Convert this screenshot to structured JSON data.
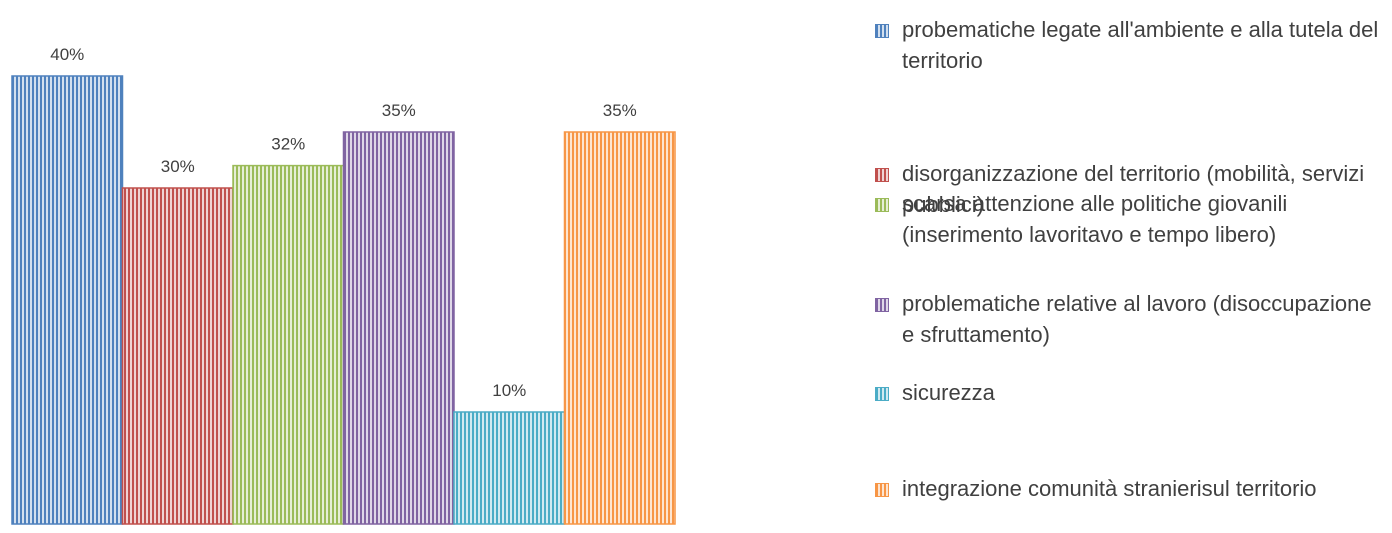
{
  "chart_data": {
    "type": "bar",
    "ylim": [
      0,
      45
    ],
    "grid": false,
    "legend_position": "right",
    "value_suffix": "%",
    "series": [
      {
        "name": "probematiche legate all'ambiente e alla tutela del territorio",
        "value": 40,
        "label": "40%",
        "color": "#4f81bd",
        "icon": "striped-swatch-icon"
      },
      {
        "name": "disorganizzazione del territorio (mobilità, servizi pubblici)",
        "value": 30,
        "label": "30%",
        "color": "#c0504d",
        "icon": "striped-swatch-icon"
      },
      {
        "name": "scarsa attenzione alle politiche giovanili (inserimento lavoritavo e tempo libero)",
        "value": 32,
        "label": "32%",
        "color": "#9bbb59",
        "icon": "striped-swatch-icon"
      },
      {
        "name": "problematiche relative al lavoro (disoccupazione e sfruttamento)",
        "value": 35,
        "label": "35%",
        "color": "#8064a2",
        "icon": "striped-swatch-icon"
      },
      {
        "name": "sicurezza",
        "value": 10,
        "label": "10%",
        "color": "#4bacc6",
        "icon": "striped-swatch-icon"
      },
      {
        "name": "integrazione comunità stranierisul territorio",
        "value": 35,
        "label": "35%",
        "color": "#f79646",
        "icon": "striped-swatch-icon"
      }
    ]
  }
}
